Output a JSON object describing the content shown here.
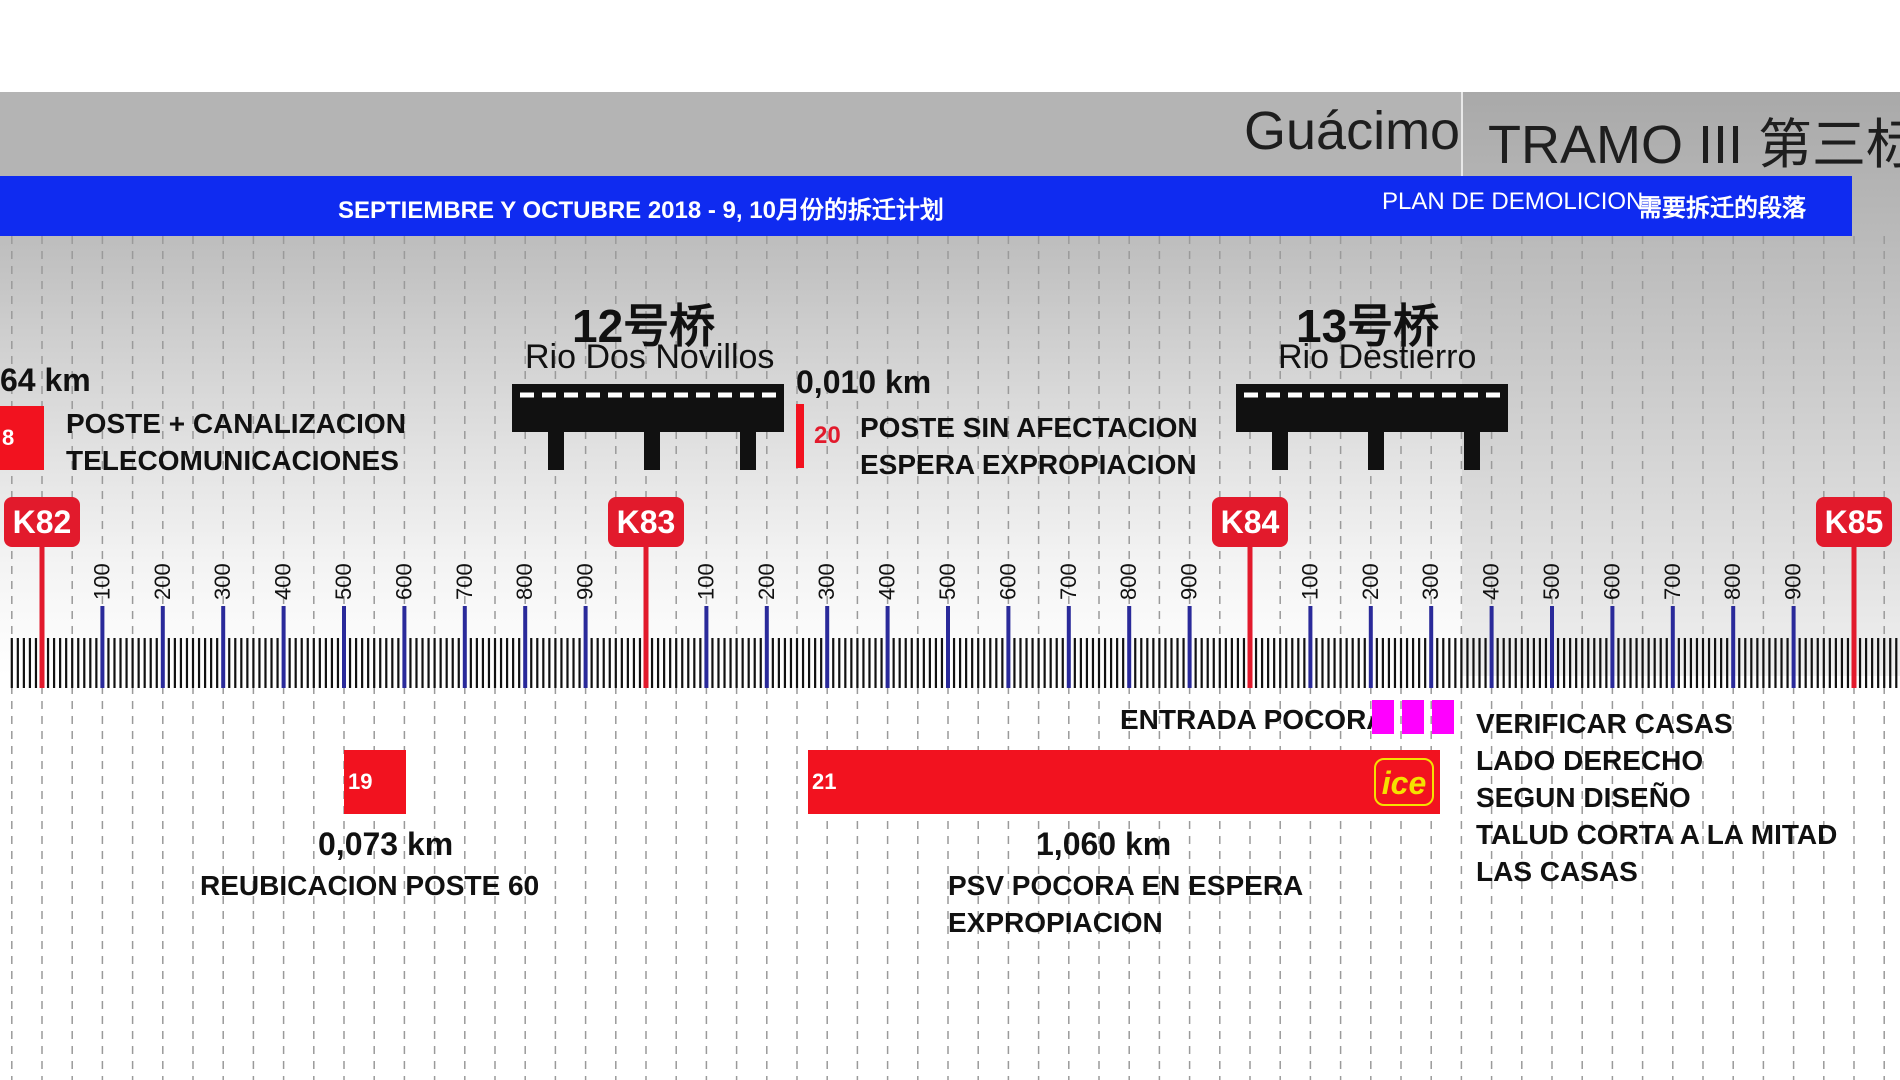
{
  "header": {
    "place": "Guácimo",
    "tramo": "TRAMO III 第三标",
    "bar_left": "SEPTIEMBRE Y OCTUBRE 2018 - 9, 10月份的拆迁计划",
    "bar_right_es": "PLAN DE DEMOLICION",
    "bar_right_cn": "需要拆迁的段落"
  },
  "bridges": [
    {
      "name_cn": "12号桥",
      "name_es": "Rio Dos Novillos"
    },
    {
      "name_cn": "13号桥",
      "name_es": "Rio Destierro"
    }
  ],
  "kilometer_markers": [
    "K82",
    "K83",
    "K84",
    "K85"
  ],
  "tick_labels": [
    "100",
    "200",
    "300",
    "400",
    "500",
    "600",
    "700",
    "800",
    "900"
  ],
  "items": {
    "i18": {
      "number": "8",
      "length": "64 km",
      "line1": "POSTE + CANALIZACION",
      "line2": "TELECOMUNICACIONES"
    },
    "i20": {
      "number": "20",
      "length": "0,010 km",
      "line1": "POSTE SIN AFECTACION",
      "line2": "ESPERA EXPROPIACION"
    },
    "i19": {
      "number": "19",
      "length": "0,073 km",
      "line1": "REUBICACION POSTE 60"
    },
    "i21": {
      "number": "21",
      "logo": "ice",
      "length": "1,060 km",
      "line1": "PSV POCORA EN ESPERA",
      "line2": "EXPROPIACION"
    },
    "entrada": {
      "label": "ENTRADA POCORA"
    },
    "verificar": {
      "lines": [
        "VERIFICAR CASAS",
        "LADO DERECHO",
        "SEGUN DISEÑO",
        "TALUD CORTA A LA MITAD",
        "LAS CASAS"
      ]
    }
  },
  "colors": {
    "red": "#e21a2c",
    "blue_bar": "#0f2bf0",
    "magenta": "#ff00ff",
    "tick_blue": "#2a2a9a"
  }
}
